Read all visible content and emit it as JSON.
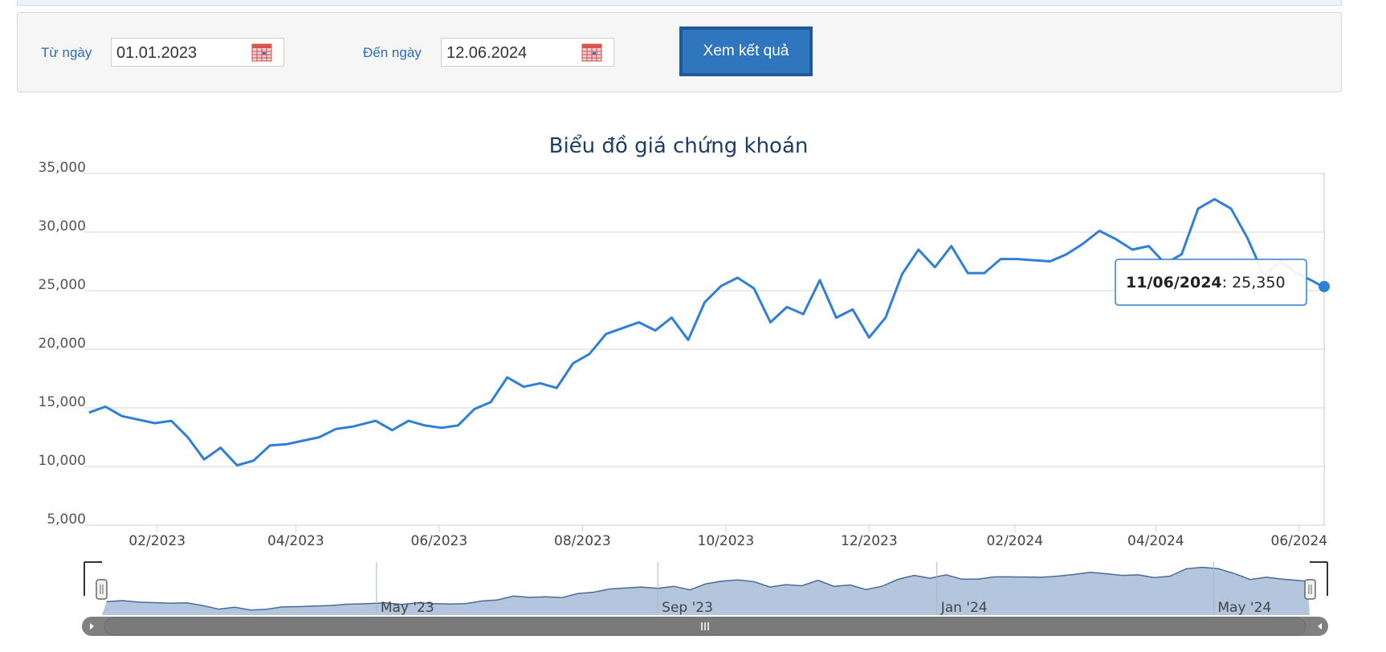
{
  "form": {
    "from_label": "Từ ngày",
    "from_value": "01.01.2023",
    "to_label": "Đến ngày",
    "to_value": "12.06.2024",
    "submit_label": "Xem kết quả",
    "calendar_icon": "calendar-icon"
  },
  "colors": {
    "line": "#2f7fd6",
    "navigator_fill": "#b4c6de",
    "navigator_line": "#4a6b96",
    "title": "#1e3d66",
    "scrollbar": "#808080"
  },
  "tooltip": {
    "date": "11/06/2024",
    "value": "25,350"
  },
  "navigator": {
    "labels": [
      "May '23",
      "Sep '23",
      "Jan '24",
      "May '24"
    ]
  },
  "chart_data": {
    "type": "line",
    "title": "Biểu đồ giá chứng khoán",
    "xlabel": "",
    "ylabel": "",
    "ylim": [
      5000,
      35000
    ],
    "yticks": [
      "5,000",
      "10,000",
      "15,000",
      "20,000",
      "25,000",
      "30,000",
      "35,000"
    ],
    "xticks": [
      "02/2023",
      "04/2023",
      "06/2023",
      "08/2023",
      "10/2023",
      "12/2023",
      "02/2024",
      "04/2024",
      "06/2024"
    ],
    "grid": true,
    "legend": "none",
    "series": [
      {
        "x": [
          "2023-01-03",
          "2023-01-10",
          "2023-01-17",
          "2023-01-31",
          "2023-02-07",
          "2023-02-14",
          "2023-02-21",
          "2023-02-28",
          "2023-03-07",
          "2023-03-14",
          "2023-03-21",
          "2023-03-28",
          "2023-04-04",
          "2023-04-11",
          "2023-04-18",
          "2023-04-25",
          "2023-05-05",
          "2023-05-12",
          "2023-05-19",
          "2023-05-26",
          "2023-06-02",
          "2023-06-09",
          "2023-06-16",
          "2023-06-23",
          "2023-06-30",
          "2023-07-07",
          "2023-07-14",
          "2023-07-21",
          "2023-07-28",
          "2023-08-04",
          "2023-08-11",
          "2023-08-18",
          "2023-08-25",
          "2023-09-01",
          "2023-09-08",
          "2023-09-15",
          "2023-09-22",
          "2023-09-29",
          "2023-10-06",
          "2023-10-13",
          "2023-10-20",
          "2023-10-27",
          "2023-11-03",
          "2023-11-10",
          "2023-11-17",
          "2023-11-24",
          "2023-12-01",
          "2023-12-08",
          "2023-12-15",
          "2023-12-22",
          "2023-12-29",
          "2024-01-05",
          "2024-01-12",
          "2024-01-19",
          "2024-01-26",
          "2024-02-02",
          "2024-02-16",
          "2024-02-23",
          "2024-03-01",
          "2024-03-08",
          "2024-03-15",
          "2024-03-22",
          "2024-03-29",
          "2024-04-05",
          "2024-04-12",
          "2024-04-19",
          "2024-04-26",
          "2024-05-03",
          "2024-05-10",
          "2024-05-17",
          "2024-05-24",
          "2024-05-31",
          "2024-06-07",
          "2024-06-11"
        ],
        "y": [
          14600,
          15100,
          14300,
          13700,
          13900,
          12500,
          10600,
          11600,
          10100,
          10500,
          11800,
          11900,
          12200,
          12500,
          13200,
          13400,
          13900,
          13100,
          13900,
          13500,
          13300,
          13500,
          14900,
          15500,
          17600,
          16800,
          17100,
          16700,
          18800,
          19600,
          21300,
          21800,
          22300,
          21600,
          22700,
          20800,
          24000,
          25400,
          26100,
          25200,
          22300,
          23600,
          23000,
          25900,
          22700,
          23400,
          21000,
          22700,
          26400,
          28500,
          27000,
          28800,
          26500,
          26500,
          27700,
          27700,
          27500,
          28100,
          29000,
          30100,
          29400,
          28500,
          28800,
          27300,
          28100,
          32000,
          32800,
          32000,
          29500,
          26300,
          27500,
          26500,
          25800,
          25350
        ]
      }
    ]
  }
}
